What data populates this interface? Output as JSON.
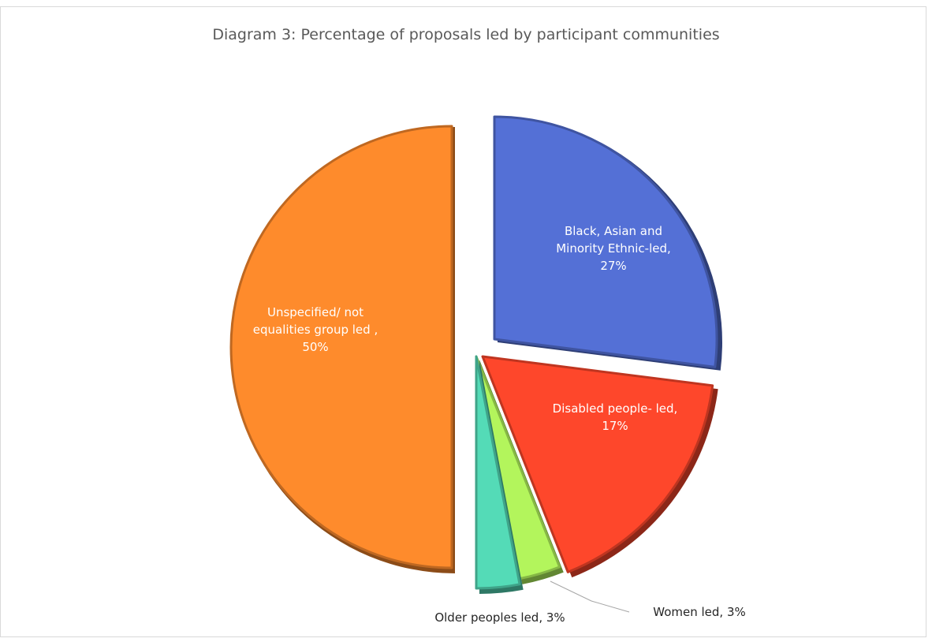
{
  "chart_data": {
    "type": "pie",
    "title": "Diagram 3: Percentage of proposals led by participant communities",
    "start_angle_deg": 0,
    "direction": "clockwise",
    "exploded": true,
    "slices": [
      {
        "label": "Black, Asian and Minority  Ethnic-led",
        "value": 27,
        "value_text": "27%",
        "color": "#5470d6",
        "label_lines": [
          "Black, Asian and",
          "Minority  Ethnic-led,",
          "27%"
        ],
        "label_position": "inside"
      },
      {
        "label": "Disabled people- led",
        "value": 17,
        "value_text": "17%",
        "color": "#fe472b",
        "label_lines": [
          "Disabled people- led,",
          "17%"
        ],
        "label_position": "inside"
      },
      {
        "label": "Women  led",
        "value": 3,
        "value_text": "3%",
        "color": "#b3f55c",
        "label_lines": [
          "Women  led, 3%"
        ],
        "label_position": "outside"
      },
      {
        "label": "Older peoples led",
        "value": 3,
        "value_text": "3%",
        "color": "#54dbb7",
        "label_lines": [
          "Older peoples led, 3%"
        ],
        "label_position": "outside"
      },
      {
        "label": "Unspecified/ not equalities group led",
        "value": 50,
        "value_text": "50%",
        "color": "#fe8b2c",
        "label_lines": [
          "Unspecified/ not",
          "equalities group led ,",
          "50%"
        ],
        "label_position": "inside"
      }
    ]
  }
}
